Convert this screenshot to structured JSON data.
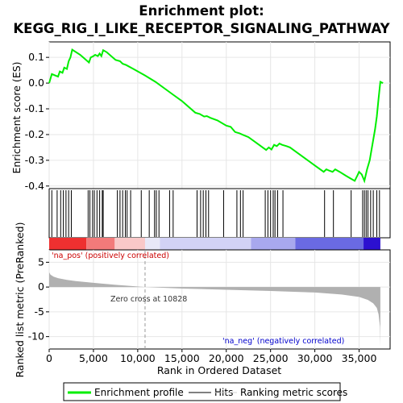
{
  "chart_data": {
    "type": "line",
    "title_line1": "Enrichment plot:",
    "title_line2": "KEGG_RIG_I_LIKE_RECEPTOR_SIGNALING_PATHWAY",
    "xlabel": "Rank in Ordered Dataset",
    "xlim": [
      0,
      38500
    ],
    "x_ticks": [
      0,
      5000,
      10000,
      15000,
      20000,
      25000,
      30000,
      35000
    ],
    "x_tick_labels": [
      "0",
      "5,000",
      "10,000",
      "15,000",
      "20,000",
      "25,000",
      "30,000",
      "35,000"
    ],
    "top_panel": {
      "ylabel": "Enrichment score (ES)",
      "ylim": [
        -0.41,
        0.16
      ],
      "y_ticks": [
        0.1,
        0.0,
        -0.1,
        -0.2,
        -0.3,
        -0.4
      ],
      "y_tick_labels": [
        "0.1",
        "0.0",
        "-0.1",
        "-0.2",
        "-0.3",
        "-0.4"
      ],
      "series_name": "Enrichment profile",
      "color": "#00ee00",
      "points": [
        [
          0,
          0.0
        ],
        [
          300,
          0.035
        ],
        [
          1000,
          0.025
        ],
        [
          1200,
          0.045
        ],
        [
          1500,
          0.04
        ],
        [
          1700,
          0.06
        ],
        [
          2000,
          0.055
        ],
        [
          2200,
          0.085
        ],
        [
          2400,
          0.1
        ],
        [
          2600,
          0.13
        ],
        [
          3500,
          0.11
        ],
        [
          4500,
          0.08
        ],
        [
          4700,
          0.1
        ],
        [
          5000,
          0.105
        ],
        [
          5200,
          0.11
        ],
        [
          5500,
          0.105
        ],
        [
          5700,
          0.115
        ],
        [
          5900,
          0.105
        ],
        [
          6100,
          0.128
        ],
        [
          6500,
          0.12
        ],
        [
          7500,
          0.09
        ],
        [
          8000,
          0.085
        ],
        [
          8300,
          0.075
        ],
        [
          8700,
          0.07
        ],
        [
          9500,
          0.055
        ],
        [
          10800,
          0.03
        ],
        [
          12000,
          0.005
        ],
        [
          14000,
          -0.045
        ],
        [
          15000,
          -0.07
        ],
        [
          16500,
          -0.115
        ],
        [
          17000,
          -0.12
        ],
        [
          17500,
          -0.13
        ],
        [
          17800,
          -0.128
        ],
        [
          18200,
          -0.135
        ],
        [
          19000,
          -0.145
        ],
        [
          20000,
          -0.165
        ],
        [
          20500,
          -0.17
        ],
        [
          21000,
          -0.19
        ],
        [
          21500,
          -0.195
        ],
        [
          21800,
          -0.2
        ],
        [
          22500,
          -0.21
        ],
        [
          23500,
          -0.235
        ],
        [
          24500,
          -0.26
        ],
        [
          24800,
          -0.25
        ],
        [
          25100,
          -0.258
        ],
        [
          25400,
          -0.24
        ],
        [
          25700,
          -0.245
        ],
        [
          26000,
          -0.235
        ],
        [
          26300,
          -0.24
        ],
        [
          26800,
          -0.245
        ],
        [
          27200,
          -0.25
        ],
        [
          28000,
          -0.27
        ],
        [
          29000,
          -0.295
        ],
        [
          30000,
          -0.32
        ],
        [
          31000,
          -0.345
        ],
        [
          31300,
          -0.335
        ],
        [
          31600,
          -0.34
        ],
        [
          32000,
          -0.345
        ],
        [
          32300,
          -0.335
        ],
        [
          32800,
          -0.345
        ],
        [
          33500,
          -0.36
        ],
        [
          34000,
          -0.37
        ],
        [
          34500,
          -0.38
        ],
        [
          34800,
          -0.36
        ],
        [
          35000,
          -0.345
        ],
        [
          35300,
          -0.355
        ],
        [
          35600,
          -0.38
        ],
        [
          35700,
          -0.365
        ],
        [
          35900,
          -0.335
        ],
        [
          36200,
          -0.3
        ],
        [
          36400,
          -0.26
        ],
        [
          36600,
          -0.22
        ],
        [
          36800,
          -0.18
        ],
        [
          37000,
          -0.13
        ],
        [
          37200,
          -0.06
        ],
        [
          37400,
          0.005
        ],
        [
          37700,
          0.0
        ]
      ]
    },
    "hits_panel": {
      "series_name": "Hits",
      "hits": [
        300,
        900,
        1300,
        1600,
        1900,
        2200,
        2500,
        4400,
        4600,
        4900,
        5100,
        5400,
        5700,
        6000,
        6100,
        7700,
        8000,
        8300,
        8600,
        8800,
        9200,
        10400,
        11300,
        11900,
        12100,
        12400,
        13600,
        14000,
        16700,
        17100,
        17400,
        17700,
        18000,
        19700,
        21200,
        21600,
        21900,
        24400,
        24700,
        25000,
        25300,
        25500,
        25800,
        26400,
        31100,
        32100,
        34100,
        35400,
        35600,
        35800,
        36000,
        36300,
        36600,
        37000,
        37300
      ]
    },
    "colorbar": {
      "segments": [
        {
          "to": 4200,
          "color": "#ee3030"
        },
        {
          "to": 7400,
          "color": "#f27a7a"
        },
        {
          "to": 10828,
          "color": "#f9c8c8"
        },
        {
          "to": 12500,
          "color": "#e8e8f8"
        },
        {
          "to": 22800,
          "color": "#d2d2f6"
        },
        {
          "to": 27800,
          "color": "#a8a8ee"
        },
        {
          "to": 35500,
          "color": "#6a6ae2"
        },
        {
          "to": 37400,
          "color": "#2c10d0"
        }
      ]
    },
    "bottom_panel": {
      "ylabel": "Ranked list metric (PreRanked)",
      "ylim": [
        -12.5,
        7.5
      ],
      "y_ticks": [
        5,
        0,
        -5,
        -10
      ],
      "y_tick_labels": [
        "5",
        "0",
        "-5",
        "-10"
      ],
      "series_name": "Ranking metric scores",
      "fill_color": "#b0b0b0",
      "profile": [
        [
          0,
          3.0
        ],
        [
          150,
          2.5
        ],
        [
          500,
          2.1
        ],
        [
          1000,
          1.8
        ],
        [
          2000,
          1.45
        ],
        [
          3000,
          1.2
        ],
        [
          5000,
          0.85
        ],
        [
          7500,
          0.45
        ],
        [
          10828,
          0.0
        ],
        [
          15000,
          -0.3
        ],
        [
          20000,
          -0.55
        ],
        [
          25000,
          -0.8
        ],
        [
          30000,
          -1.1
        ],
        [
          33000,
          -1.5
        ],
        [
          35000,
          -2.0
        ],
        [
          36000,
          -2.6
        ],
        [
          36600,
          -3.3
        ],
        [
          37000,
          -4.2
        ],
        [
          37200,
          -5.5
        ],
        [
          37350,
          -8.0
        ],
        [
          37400,
          -12.0
        ]
      ],
      "zero_cross_label": "Zero cross at 10828",
      "zero_cross": 10828,
      "pos_label": "'na_pos' (positively correlated)",
      "neg_label": "'na_neg' (negatively correlated)"
    },
    "legend": [
      {
        "label": "Enrichment profile",
        "color": "#00ee00"
      },
      {
        "label": "Hits",
        "color": "#000000"
      },
      {
        "label": "Ranking metric scores",
        "color": "#d0d0d0"
      }
    ]
  }
}
